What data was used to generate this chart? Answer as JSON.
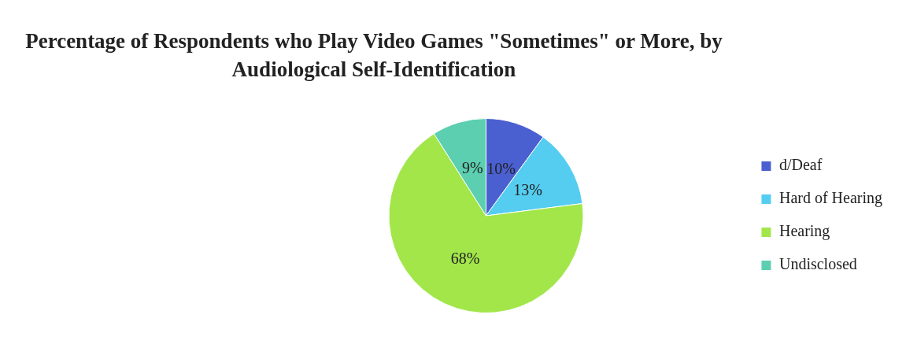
{
  "chart_data": {
    "type": "pie",
    "title": "Percentage of Respondents who Play Video Games \"Sometimes\" or More, by Audiological Self-Identification",
    "categories": [
      "d/Deaf",
      "Hard of Hearing",
      "Hearing",
      "Undisclosed"
    ],
    "values": [
      10,
      13,
      68,
      9
    ],
    "colors": [
      "#4a5fd0",
      "#55cdf0",
      "#a2e64a",
      "#5ccfb0"
    ],
    "value_labels": [
      "10%",
      "13%",
      "68%",
      "9%"
    ],
    "legend": "right"
  }
}
